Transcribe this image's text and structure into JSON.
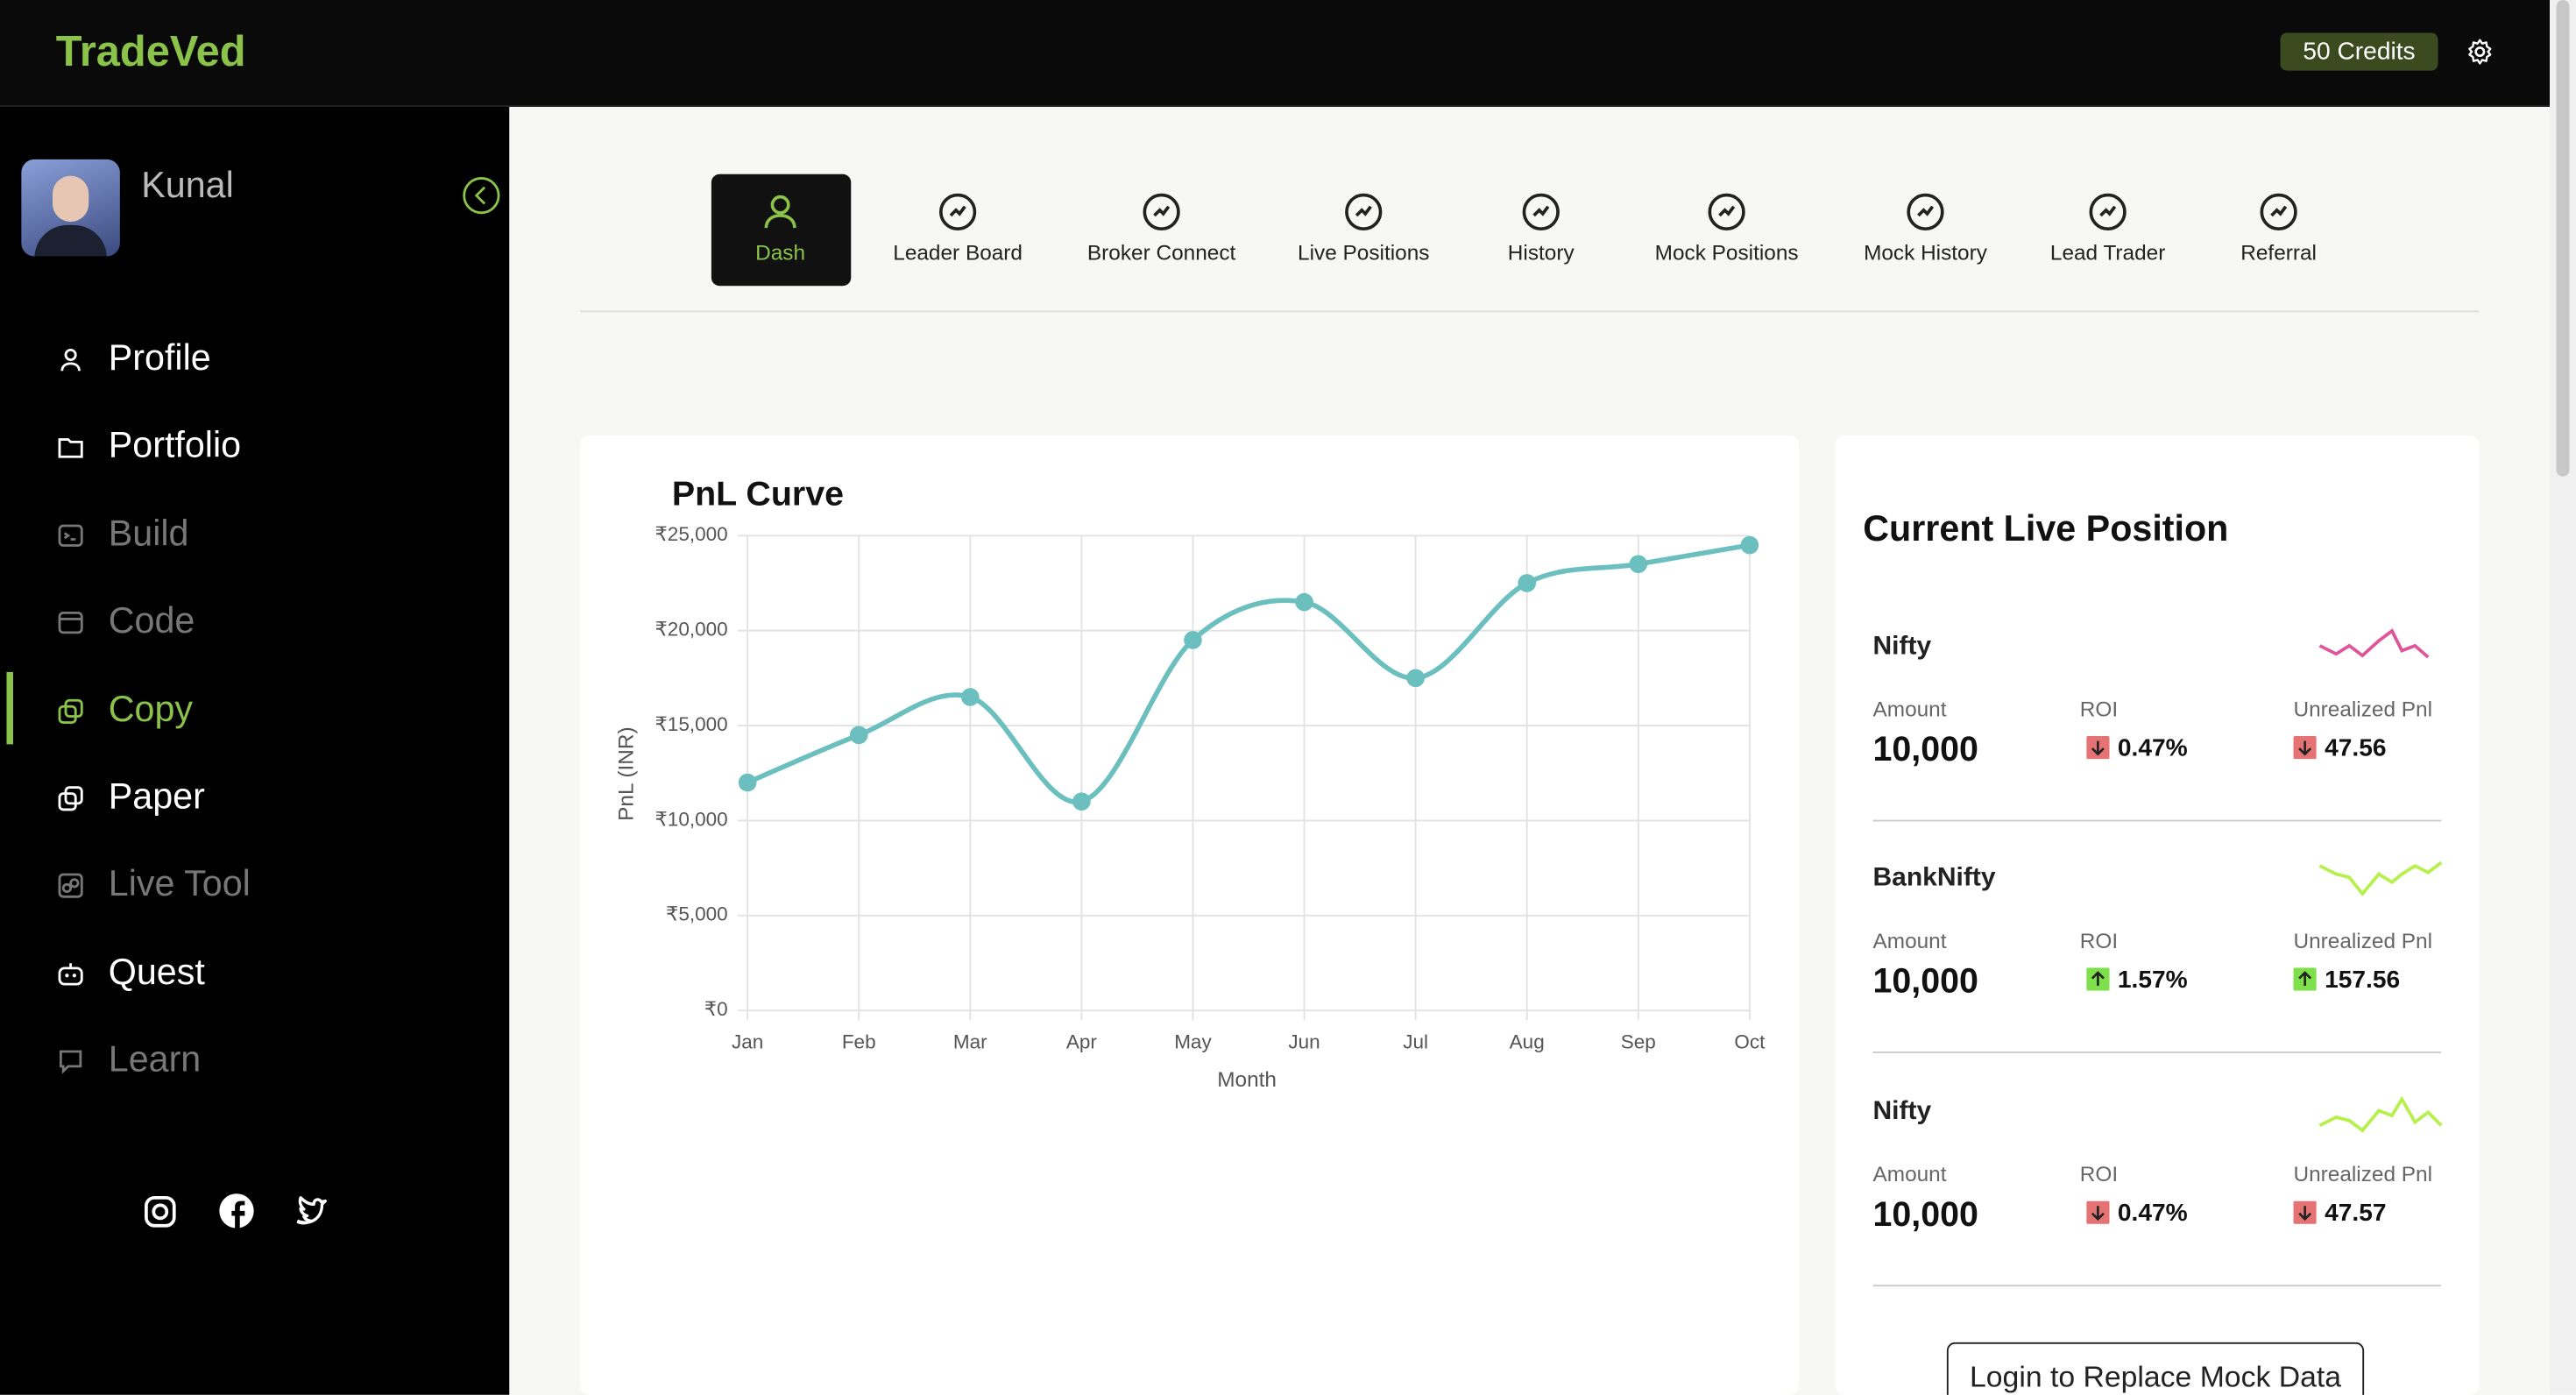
{
  "header": {
    "logo": "TradeVed",
    "credits": "50 Credits"
  },
  "sidebar": {
    "user": "Kunal",
    "items": [
      {
        "label": "Profile",
        "state": "normal"
      },
      {
        "label": "Portfolio",
        "state": "normal"
      },
      {
        "label": "Build",
        "state": "dim"
      },
      {
        "label": "Code",
        "state": "dim"
      },
      {
        "label": "Copy",
        "state": "active"
      },
      {
        "label": "Paper",
        "state": "normal"
      },
      {
        "label": "Live Tool",
        "state": "dim"
      },
      {
        "label": "Quest",
        "state": "normal"
      },
      {
        "label": "Learn",
        "state": "dim"
      }
    ]
  },
  "tabs": [
    {
      "label": "Dash",
      "active": true
    },
    {
      "label": "Leader Board"
    },
    {
      "label": "Broker Connect"
    },
    {
      "label": "Live Positions"
    },
    {
      "label": "History"
    },
    {
      "label": "Mock Positions"
    },
    {
      "label": "Mock History"
    },
    {
      "label": "Lead Trader"
    },
    {
      "label": "Referral"
    }
  ],
  "chart_data": {
    "type": "line",
    "title": "PnL Curve",
    "x_label": "Month",
    "y_label": "PnL (INR)",
    "categories": [
      "Jan",
      "Feb",
      "Mar",
      "Apr",
      "May",
      "Jun",
      "Jul",
      "Aug",
      "Sep",
      "Oct"
    ],
    "values": [
      12000,
      14500,
      16500,
      11000,
      19500,
      21500,
      17500,
      22500,
      23500,
      24500
    ],
    "color": "#6cbfbf",
    "ylim": [
      0,
      25000
    ],
    "yticks": [
      {
        "value": 0,
        "label": "₹0"
      },
      {
        "value": 5000,
        "label": "₹5,000"
      },
      {
        "value": 10000,
        "label": "₹10,000"
      },
      {
        "value": 15000,
        "label": "₹15,000"
      },
      {
        "value": 20000,
        "label": "₹20,000"
      },
      {
        "value": 25000,
        "label": "₹25,000"
      }
    ],
    "grid": true
  },
  "live_position": {
    "title": "Current Live Position",
    "labels": {
      "amount": "Amount",
      "roi": "ROI",
      "pnl": "Unrealized Pnl"
    },
    "positions": [
      {
        "name": "Nifty",
        "amount": "10,000",
        "roi": "0.47%",
        "pnl": "47.56",
        "direction": "down"
      },
      {
        "name": "BankNifty",
        "amount": "10,000",
        "roi": "1.57%",
        "pnl": "157.56",
        "direction": "up"
      },
      {
        "name": "Nifty",
        "amount": "10,000",
        "roi": "0.47%",
        "pnl": "47.57",
        "direction": "down"
      }
    ],
    "button": "Login to Replace Mock Data"
  }
}
